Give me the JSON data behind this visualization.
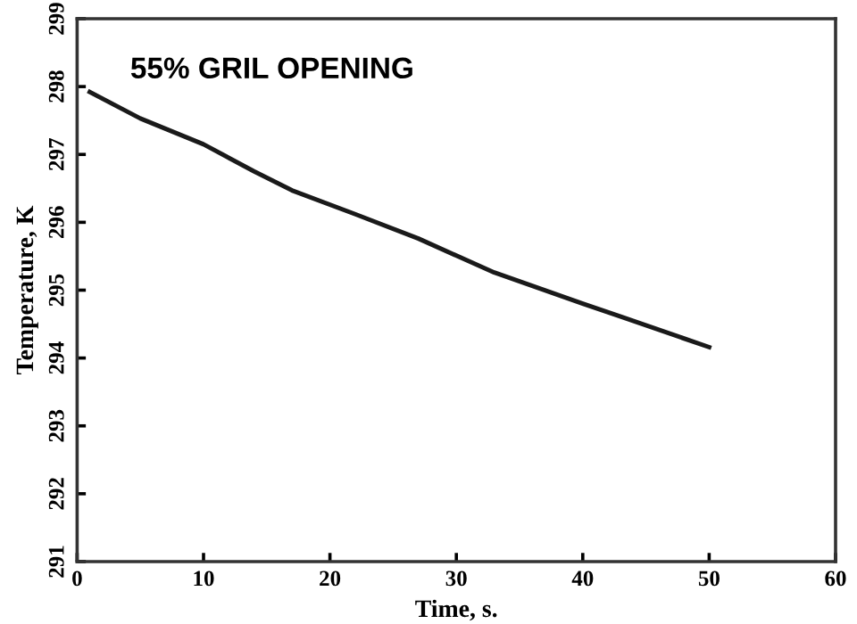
{
  "chart_data": {
    "type": "line",
    "title": "55% GRIL OPENING",
    "xlabel": "Time, s.",
    "ylabel": "Temperature, K",
    "x": [
      1,
      5,
      10,
      14,
      17,
      22,
      27,
      33,
      40,
      43,
      50
    ],
    "series": [
      {
        "color": "#1a1a1a",
        "values": [
          297.92,
          297.53,
          297.15,
          296.75,
          296.47,
          296.12,
          295.76,
          295.26,
          294.8,
          294.61,
          294.16
        ]
      }
    ],
    "xlim": [
      0,
      60
    ],
    "xticks": [
      0,
      10,
      20,
      30,
      40,
      50,
      60
    ],
    "ylim": [
      291,
      299
    ],
    "yticks": [
      291,
      292,
      293,
      294,
      295,
      296,
      297,
      298,
      299
    ],
    "grid": false,
    "legend": false,
    "marker": "none",
    "line_style": "solid"
  }
}
